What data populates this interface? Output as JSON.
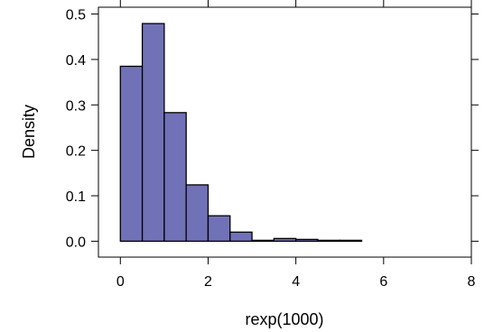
{
  "chart_data": {
    "type": "bar",
    "subtype": "histogram",
    "title": "",
    "xlabel": "rexp(1000)",
    "ylabel": "Density",
    "bins": [
      {
        "x0": 0.0,
        "x1": 0.5,
        "density": 0.385
      },
      {
        "x0": 0.5,
        "x1": 1.0,
        "density": 0.479
      },
      {
        "x0": 1.0,
        "x1": 1.5,
        "density": 0.283
      },
      {
        "x0": 1.5,
        "x1": 2.0,
        "density": 0.124
      },
      {
        "x0": 2.0,
        "x1": 2.5,
        "density": 0.056
      },
      {
        "x0": 2.5,
        "x1": 3.0,
        "density": 0.02
      },
      {
        "x0": 3.0,
        "x1": 3.5,
        "density": 0.002
      },
      {
        "x0": 3.5,
        "x1": 4.0,
        "density": 0.006
      },
      {
        "x0": 4.0,
        "x1": 4.5,
        "density": 0.004
      },
      {
        "x0": 4.5,
        "x1": 5.0,
        "density": 0.002
      },
      {
        "x0": 5.0,
        "x1": 5.5,
        "density": 0.002
      }
    ],
    "xlim": [
      -0.5,
      8.0
    ],
    "ylim": [
      -0.035,
      0.515
    ],
    "x_ticks": [
      0,
      2,
      4,
      6,
      8
    ],
    "x_tick_labels": [
      "0",
      "2",
      "4",
      "6",
      "8"
    ],
    "y_ticks": [
      0.0,
      0.1,
      0.2,
      0.3,
      0.4,
      0.5
    ],
    "y_tick_labels": [
      "0.0",
      "0.1",
      "0.2",
      "0.3",
      "0.4",
      "0.5"
    ],
    "grid": false,
    "bar_color": "#7171b8",
    "bar_edge_color": "#000000"
  }
}
